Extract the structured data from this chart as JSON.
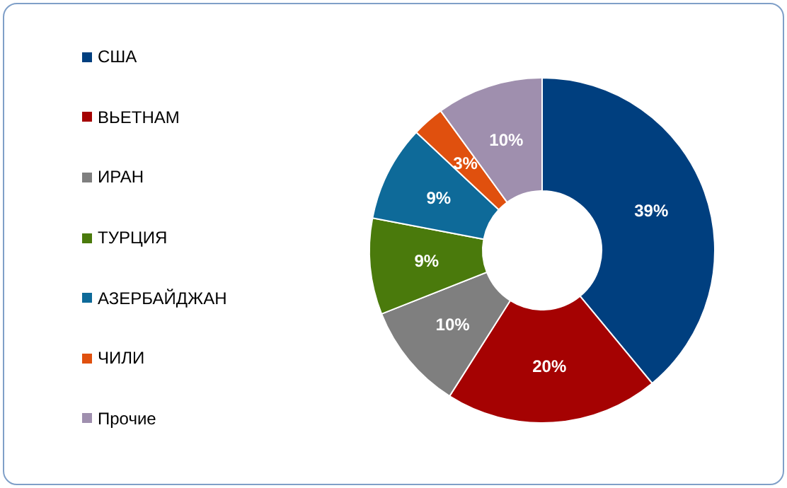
{
  "chart_data": {
    "type": "donut",
    "categories": [
      "США",
      "ВЬЕТНАМ",
      "ИРАН",
      "ТУРЦИЯ",
      "АЗЕРБАЙДЖАН",
      "ЧИЛИ",
      "Прочие"
    ],
    "values": [
      39,
      20,
      10,
      9,
      9,
      3,
      10
    ],
    "colors": [
      "#003f7f",
      "#a50202",
      "#7f7f7f",
      "#4a7a0c",
      "#0e6a99",
      "#e0500e",
      "#9f8fae"
    ],
    "value_labels": [
      "39%",
      "20%",
      "10%",
      "9%",
      "9%",
      "3%",
      "10%"
    ],
    "legend": "left"
  }
}
